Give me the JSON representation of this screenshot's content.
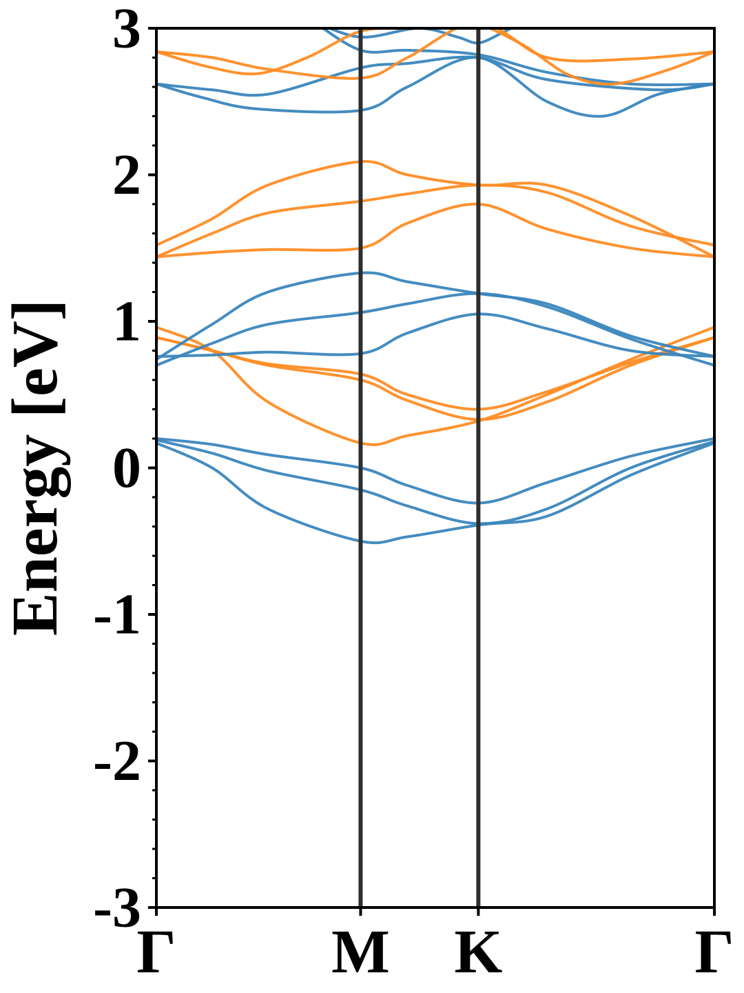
{
  "chart_data": {
    "type": "line",
    "title": "",
    "xlabel": "",
    "ylabel": "Energy [eV]",
    "ylim": [
      -3,
      3
    ],
    "xlim": [
      0,
      1
    ],
    "grid": false,
    "legend": "none",
    "y_ticks": [
      -3,
      -2,
      -1,
      0,
      1,
      2,
      3
    ],
    "y_tick_labels": [
      "-3",
      "-2",
      "-1",
      "0",
      "1",
      "2",
      "3"
    ],
    "y_minor_step": 0.2,
    "high_symmetry_points": [
      {
        "label": "Γ",
        "x": 0.0
      },
      {
        "label": "M",
        "x": 0.366
      },
      {
        "label": "K",
        "x": 0.577
      },
      {
        "label": "Γ",
        "x": 1.0
      }
    ],
    "vertical_lines": [
      0.366,
      0.577
    ],
    "colors": {
      "blue": "#3a86bd",
      "orange": "#ff8c24",
      "vline": "#2e2e2e"
    },
    "series": [
      {
        "color": "blue",
        "points": [
          [
            0,
            0.2
          ],
          [
            0.1,
            0.16
          ],
          [
            0.2,
            0.09
          ],
          [
            0.366,
            0.0
          ],
          [
            0.45,
            -0.12
          ],
          [
            0.577,
            -0.24
          ],
          [
            0.7,
            -0.1
          ],
          [
            0.85,
            0.08
          ],
          [
            1.0,
            0.2
          ]
        ]
      },
      {
        "color": "blue",
        "points": [
          [
            0,
            0.19
          ],
          [
            0.1,
            0.1
          ],
          [
            0.2,
            -0.02
          ],
          [
            0.366,
            -0.15
          ],
          [
            0.45,
            -0.26
          ],
          [
            0.577,
            -0.38
          ],
          [
            0.7,
            -0.28
          ],
          [
            0.85,
            0.0
          ],
          [
            1.0,
            0.18
          ]
        ]
      },
      {
        "color": "blue",
        "points": [
          [
            0,
            0.17
          ],
          [
            0.1,
            0.0
          ],
          [
            0.2,
            -0.28
          ],
          [
            0.366,
            -0.5
          ],
          [
            0.45,
            -0.47
          ],
          [
            0.577,
            -0.39
          ],
          [
            0.7,
            -0.33
          ],
          [
            0.85,
            -0.05
          ],
          [
            1.0,
            0.17
          ]
        ]
      },
      {
        "color": "orange",
        "points": [
          [
            0,
            0.96
          ],
          [
            0.1,
            0.8
          ],
          [
            0.2,
            0.45
          ],
          [
            0.366,
            0.17
          ],
          [
            0.45,
            0.22
          ],
          [
            0.577,
            0.32
          ],
          [
            0.7,
            0.5
          ],
          [
            0.85,
            0.74
          ],
          [
            1.0,
            0.96
          ]
        ]
      },
      {
        "color": "orange",
        "points": [
          [
            0,
            0.89
          ],
          [
            0.1,
            0.8
          ],
          [
            0.2,
            0.7
          ],
          [
            0.366,
            0.6
          ],
          [
            0.45,
            0.46
          ],
          [
            0.577,
            0.33
          ],
          [
            0.7,
            0.45
          ],
          [
            0.85,
            0.7
          ],
          [
            1.0,
            0.89
          ]
        ]
      },
      {
        "color": "orange",
        "points": [
          [
            0,
            0.89
          ],
          [
            0.1,
            0.8
          ],
          [
            0.2,
            0.71
          ],
          [
            0.366,
            0.64
          ],
          [
            0.45,
            0.5
          ],
          [
            0.577,
            0.4
          ],
          [
            0.7,
            0.52
          ],
          [
            0.85,
            0.72
          ],
          [
            1.0,
            0.89
          ]
        ]
      },
      {
        "color": "blue",
        "points": [
          [
            0,
            0.76
          ],
          [
            0.1,
            0.77
          ],
          [
            0.2,
            0.79
          ],
          [
            0.366,
            0.78
          ],
          [
            0.45,
            0.92
          ],
          [
            0.577,
            1.05
          ],
          [
            0.7,
            0.95
          ],
          [
            0.85,
            0.8
          ],
          [
            1.0,
            0.76
          ]
        ]
      },
      {
        "color": "blue",
        "points": [
          [
            0,
            0.7
          ],
          [
            0.1,
            0.85
          ],
          [
            0.2,
            0.98
          ],
          [
            0.366,
            1.06
          ],
          [
            0.45,
            1.12
          ],
          [
            0.577,
            1.19
          ],
          [
            0.7,
            1.1
          ],
          [
            0.85,
            0.88
          ],
          [
            1.0,
            0.7
          ]
        ]
      },
      {
        "color": "blue",
        "points": [
          [
            0,
            0.74
          ],
          [
            0.1,
            0.98
          ],
          [
            0.2,
            1.2
          ],
          [
            0.366,
            1.33
          ],
          [
            0.45,
            1.27
          ],
          [
            0.577,
            1.19
          ],
          [
            0.7,
            1.12
          ],
          [
            0.85,
            0.9
          ],
          [
            1.0,
            0.76
          ]
        ]
      },
      {
        "color": "orange",
        "points": [
          [
            0,
            1.44
          ],
          [
            0.1,
            1.47
          ],
          [
            0.2,
            1.49
          ],
          [
            0.366,
            1.5
          ],
          [
            0.45,
            1.67
          ],
          [
            0.577,
            1.8
          ],
          [
            0.7,
            1.63
          ],
          [
            0.85,
            1.5
          ],
          [
            1.0,
            1.44
          ]
        ]
      },
      {
        "color": "orange",
        "points": [
          [
            0,
            1.44
          ],
          [
            0.1,
            1.6
          ],
          [
            0.2,
            1.74
          ],
          [
            0.366,
            1.82
          ],
          [
            0.45,
            1.87
          ],
          [
            0.577,
            1.93
          ],
          [
            0.7,
            1.88
          ],
          [
            0.85,
            1.65
          ],
          [
            1.0,
            1.52
          ]
        ]
      },
      {
        "color": "orange",
        "points": [
          [
            0,
            1.52
          ],
          [
            0.1,
            1.7
          ],
          [
            0.2,
            1.93
          ],
          [
            0.366,
            2.09
          ],
          [
            0.45,
            2.0
          ],
          [
            0.577,
            1.93
          ],
          [
            0.7,
            1.93
          ],
          [
            0.85,
            1.72
          ],
          [
            1.0,
            1.44
          ]
        ]
      },
      {
        "color": "blue",
        "points": [
          [
            0,
            2.62
          ],
          [
            0.08,
            2.53
          ],
          [
            0.18,
            2.45
          ],
          [
            0.366,
            2.44
          ],
          [
            0.45,
            2.6
          ],
          [
            0.577,
            2.8
          ],
          [
            0.7,
            2.5
          ],
          [
            0.8,
            2.4
          ],
          [
            0.9,
            2.55
          ],
          [
            1.0,
            2.62
          ]
        ]
      },
      {
        "color": "blue",
        "points": [
          [
            0,
            2.62
          ],
          [
            0.1,
            2.58
          ],
          [
            0.2,
            2.55
          ],
          [
            0.366,
            2.73
          ],
          [
            0.45,
            2.76
          ],
          [
            0.577,
            2.8
          ],
          [
            0.7,
            2.65
          ],
          [
            0.9,
            2.58
          ],
          [
            1.0,
            2.62
          ]
        ]
      },
      {
        "color": "blue",
        "points": [
          [
            0.28,
            3.05
          ],
          [
            0.366,
            2.85
          ],
          [
            0.45,
            2.85
          ],
          [
            0.577,
            2.82
          ],
          [
            0.7,
            2.7
          ],
          [
            0.85,
            2.62
          ],
          [
            1.0,
            2.62
          ]
        ]
      },
      {
        "color": "blue",
        "points": [
          [
            0.28,
            3.05
          ],
          [
            0.366,
            2.94
          ],
          [
            0.47,
            3.0
          ],
          [
            0.54,
            2.94
          ],
          [
            0.577,
            2.9
          ],
          [
            0.62,
            2.97
          ],
          [
            0.66,
            3.05
          ]
        ]
      },
      {
        "color": "orange",
        "points": [
          [
            0,
            2.84
          ],
          [
            0.1,
            2.8
          ],
          [
            0.2,
            2.72
          ],
          [
            0.366,
            2.66
          ],
          [
            0.45,
            2.8
          ],
          [
            0.577,
            3.04
          ],
          [
            0.7,
            2.8
          ],
          [
            0.85,
            2.79
          ],
          [
            1.0,
            2.84
          ]
        ]
      },
      {
        "color": "orange",
        "points": [
          [
            0,
            2.84
          ],
          [
            0.09,
            2.74
          ],
          [
            0.18,
            2.69
          ],
          [
            0.27,
            2.8
          ],
          [
            0.366,
            2.98
          ],
          [
            0.45,
            3.0
          ],
          [
            0.5,
            3.02
          ]
        ]
      },
      {
        "color": "orange",
        "points": [
          [
            0.577,
            3.04
          ],
          [
            0.66,
            2.88
          ],
          [
            0.74,
            2.68
          ],
          [
            0.82,
            2.62
          ],
          [
            0.92,
            2.72
          ],
          [
            1.0,
            2.84
          ]
        ]
      }
    ]
  }
}
